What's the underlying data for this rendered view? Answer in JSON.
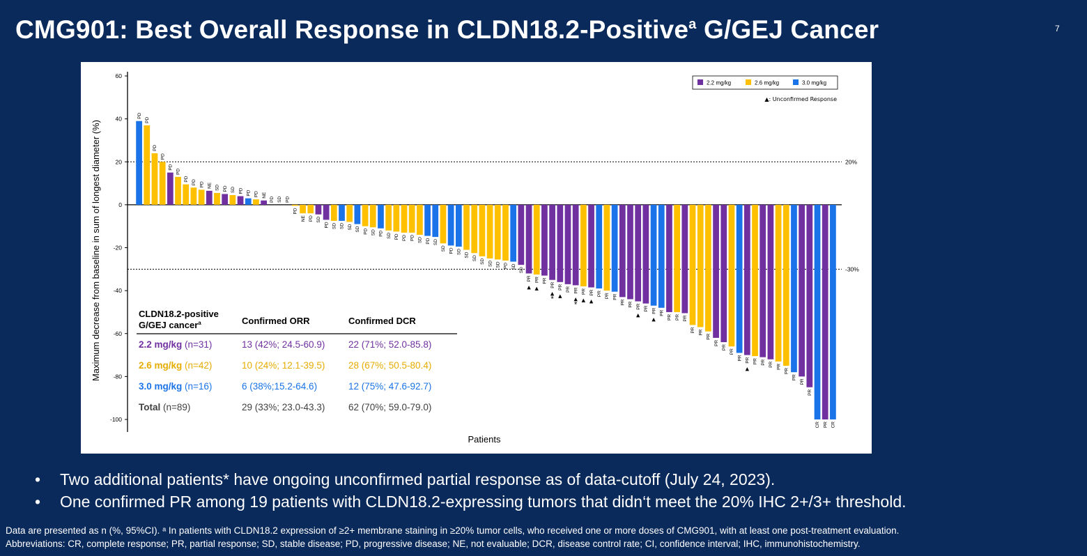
{
  "slide": {
    "title": "CMG901: Best Overall Response in CLDN18.2-Positive",
    "title_sup": "a",
    "title_end": " G/GEJ Cancer",
    "page_number": "7"
  },
  "legend": {
    "items": [
      {
        "label": "2.2 mg/kg",
        "color": "#7030a0"
      },
      {
        "label": "2.6 mg/kg",
        "color": "#ffc000"
      },
      {
        "label": "3.0 mg/kg",
        "color": "#1a73e8"
      }
    ],
    "unconfirmed": "▲: Unconfirmed Response"
  },
  "chart_data": {
    "type": "bar",
    "ylabel": "Maximum decrease from baseline in sum of longest diameter (%)",
    "xlabel": "Patients",
    "ylim": [
      -100,
      60
    ],
    "yticks": [
      60,
      40,
      20,
      0,
      -20,
      -40,
      -60,
      -80,
      -100
    ],
    "reference_lines": [
      {
        "value": 20,
        "label": "20%"
      },
      {
        "value": -30,
        "label": "-30%"
      }
    ],
    "dose_colors": {
      "2.2": "#7030a0",
      "2.6": "#ffc000",
      "3.0": "#1a73e8"
    },
    "bars": [
      {
        "v": 39,
        "d": "3.0",
        "r": "PD"
      },
      {
        "v": 37,
        "d": "2.6",
        "r": "PD"
      },
      {
        "v": 24,
        "d": "2.6",
        "r": "PD"
      },
      {
        "v": 20,
        "d": "2.6",
        "r": "PD"
      },
      {
        "v": 15,
        "d": "2.2",
        "r": "PD"
      },
      {
        "v": 13,
        "d": "2.6",
        "r": "PD"
      },
      {
        "v": 9.5,
        "d": "2.6",
        "r": "PD"
      },
      {
        "v": 8,
        "d": "2.6",
        "r": "PD"
      },
      {
        "v": 7,
        "d": "2.6",
        "r": "PD"
      },
      {
        "v": 6.5,
        "d": "2.2",
        "r": "NE"
      },
      {
        "v": 5.5,
        "d": "2.6",
        "r": "SD"
      },
      {
        "v": 5,
        "d": "2.2",
        "r": "PD"
      },
      {
        "v": 4.5,
        "d": "2.6",
        "r": "SD"
      },
      {
        "v": 4,
        "d": "2.2",
        "r": "PD"
      },
      {
        "v": 3,
        "d": "3.0",
        "r": "PD"
      },
      {
        "v": 2.5,
        "d": "2.6",
        "r": "PD"
      },
      {
        "v": 2,
        "d": "2.2",
        "r": "NE"
      },
      {
        "v": 0,
        "d": "2.6",
        "r": "PD"
      },
      {
        "v": 0,
        "d": "2.6",
        "r": "SD"
      },
      {
        "v": 0,
        "d": "2.6",
        "r": "PD"
      },
      {
        "v": -0.5,
        "d": "2.6",
        "r": "PD"
      },
      {
        "v": -4,
        "d": "2.6",
        "r": "NE"
      },
      {
        "v": -4,
        "d": "2.6",
        "r": "PD"
      },
      {
        "v": -4.5,
        "d": "2.2",
        "r": "SD"
      },
      {
        "v": -7,
        "d": "2.2",
        "r": "PD"
      },
      {
        "v": -7.5,
        "d": "2.6",
        "r": "SD"
      },
      {
        "v": -7.5,
        "d": "3.0",
        "r": "SD"
      },
      {
        "v": -8,
        "d": "2.6",
        "r": "SD"
      },
      {
        "v": -9,
        "d": "3.0",
        "r": "SD"
      },
      {
        "v": -10,
        "d": "2.6",
        "r": "PD"
      },
      {
        "v": -10.5,
        "d": "2.6",
        "r": "SD"
      },
      {
        "v": -11,
        "d": "3.0",
        "r": "PD"
      },
      {
        "v": -12,
        "d": "2.6",
        "r": "SD"
      },
      {
        "v": -12.5,
        "d": "2.6",
        "r": "PD"
      },
      {
        "v": -13,
        "d": "2.6",
        "r": "PD"
      },
      {
        "v": -13,
        "d": "2.6",
        "r": "PD"
      },
      {
        "v": -14,
        "d": "2.6",
        "r": "SD"
      },
      {
        "v": -14.5,
        "d": "3.0",
        "r": "PD"
      },
      {
        "v": -15,
        "d": "3.0",
        "r": "SD"
      },
      {
        "v": -18,
        "d": "2.6",
        "r": "SD"
      },
      {
        "v": -19,
        "d": "3.0",
        "r": "PD"
      },
      {
        "v": -19.5,
        "d": "3.0",
        "r": "SD"
      },
      {
        "v": -21,
        "d": "2.6",
        "r": "SD"
      },
      {
        "v": -22.5,
        "d": "2.6",
        "r": "SD"
      },
      {
        "v": -24,
        "d": "2.6",
        "r": "SD"
      },
      {
        "v": -25,
        "d": "2.6",
        "r": "SD"
      },
      {
        "v": -25.5,
        "d": "2.6",
        "r": "SD"
      },
      {
        "v": -26,
        "d": "2.6",
        "r": "PD"
      },
      {
        "v": -26.5,
        "d": "3.0",
        "r": "SD"
      },
      {
        "v": -28,
        "d": "2.2",
        "r": "SD"
      },
      {
        "v": -32,
        "d": "2.2",
        "r": "PR",
        "tri": true
      },
      {
        "v": -32.5,
        "d": "2.6",
        "r": "PR",
        "tri": true
      },
      {
        "v": -33,
        "d": "2.2",
        "r": "PR"
      },
      {
        "v": -35,
        "d": "2.2",
        "r": "PR",
        "tri": true,
        "star": true
      },
      {
        "v": -36,
        "d": "2.2",
        "r": "PR",
        "tri": true
      },
      {
        "v": -37,
        "d": "2.2",
        "r": "PR"
      },
      {
        "v": -37.5,
        "d": "2.2",
        "r": "PR",
        "tri": true,
        "star": true
      },
      {
        "v": -38,
        "d": "2.6",
        "r": "PR",
        "tri": true
      },
      {
        "v": -38.5,
        "d": "2.2",
        "r": "PR",
        "tri": true
      },
      {
        "v": -39,
        "d": "3.0",
        "r": "PR"
      },
      {
        "v": -40,
        "d": "2.6",
        "r": "PR"
      },
      {
        "v": -40.5,
        "d": "3.0",
        "r": "PR"
      },
      {
        "v": -43,
        "d": "2.2",
        "r": "PR"
      },
      {
        "v": -44,
        "d": "2.2",
        "r": "PR"
      },
      {
        "v": -45,
        "d": "2.2",
        "r": "PR",
        "tri": true
      },
      {
        "v": -46,
        "d": "2.2",
        "r": "PR"
      },
      {
        "v": -47,
        "d": "3.0",
        "r": "PR",
        "tri": true
      },
      {
        "v": -48,
        "d": "3.0",
        "r": "PR"
      },
      {
        "v": -50,
        "d": "2.2",
        "r": "PR"
      },
      {
        "v": -50,
        "d": "2.6",
        "r": "PR"
      },
      {
        "v": -50.5,
        "d": "2.2",
        "r": "PR"
      },
      {
        "v": -56,
        "d": "2.6",
        "r": "PR"
      },
      {
        "v": -57,
        "d": "2.6",
        "r": "PR"
      },
      {
        "v": -59,
        "d": "2.6",
        "r": "PR"
      },
      {
        "v": -62,
        "d": "2.2",
        "r": "PR"
      },
      {
        "v": -64,
        "d": "2.2",
        "r": "PR"
      },
      {
        "v": -66,
        "d": "2.6",
        "r": "PR"
      },
      {
        "v": -69,
        "d": "3.0",
        "r": "PR"
      },
      {
        "v": -70,
        "d": "2.2",
        "r": "PR",
        "tri": true
      },
      {
        "v": -70.5,
        "d": "2.6",
        "r": "PR"
      },
      {
        "v": -71,
        "d": "2.2",
        "r": "PR"
      },
      {
        "v": -72,
        "d": "2.2",
        "r": "PR"
      },
      {
        "v": -73,
        "d": "2.6",
        "r": "PR"
      },
      {
        "v": -75,
        "d": "2.6",
        "r": "PR"
      },
      {
        "v": -78,
        "d": "3.0",
        "r": "PR"
      },
      {
        "v": -80,
        "d": "2.2",
        "r": "PR"
      },
      {
        "v": -85,
        "d": "2.2",
        "r": "PR"
      },
      {
        "v": -100,
        "d": "3.0",
        "r": "CR"
      },
      {
        "v": -100,
        "d": "2.2",
        "r": "PR"
      },
      {
        "v": -100,
        "d": "3.0",
        "r": "CR"
      }
    ]
  },
  "table": {
    "headers": [
      "CLDN18.2-positive G/GEJ cancer",
      "Confirmed ORR",
      "Confirmed DCR"
    ],
    "header_sup": "a",
    "rows": [
      {
        "dose": "2.2 mg/kg",
        "n": "(n=31)",
        "orr": "13 (42%; 24.5-60.9)",
        "dcr": "22 (71%; 52.0-85.8)",
        "color": "#7030a0"
      },
      {
        "dose": "2.6 mg/kg",
        "n": "(n=42)",
        "orr": "10 (24%; 12.1-39.5)",
        "dcr": "28 (67%; 50.5-80.4)",
        "color": "#e6ac00"
      },
      {
        "dose": "3.0 mg/kg",
        "n": "(n=16)",
        "orr": "6 (38%;15.2-64.6)",
        "dcr": "12 (75%; 47.6-92.7)",
        "color": "#1a73e8"
      },
      {
        "dose": "Total",
        "n": "(n=89)",
        "orr": "29 (33%; 23.0-43.3)",
        "dcr": "62 (70%; 59.0-79.0)",
        "color": "#404040"
      }
    ]
  },
  "bullets": [
    "Two additional patients* have ongoing unconfirmed partial response as of data-cutoff (July 24, 2023).",
    "One confirmed PR among 19 patients with CLDN18.2-expressing tumors that didn‘t meet the 20% IHC 2+/3+ threshold."
  ],
  "footnote": [
    "Data are presented as n (%, 95%CI). ᵃ In patients with CLDN18.2 expression of ≥2+ membrane staining in ≥20% tumor cells, who received one or more doses of CMG901, with at least one post-treatment evaluation.",
    "Abbreviations: CR, complete response; PR, partial response; SD, stable disease; PD, progressive disease; NE, not evaluable; DCR, disease control rate; CI, confidence interval; IHC, immunohistochemistry."
  ]
}
